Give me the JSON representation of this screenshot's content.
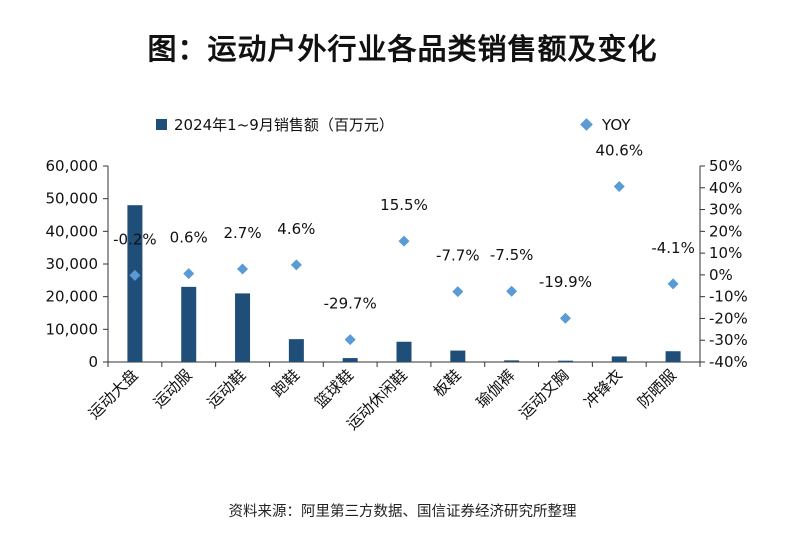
{
  "title": "图：运动户外行业各品类销售额及变化",
  "source": "资料来源：阿里第三方数据、国信证券经济研究所整理",
  "colors": {
    "bar": "#1f4e79",
    "yoy": "#5b9bd5",
    "axis": "#333333"
  },
  "chart_data": {
    "type": "bar",
    "categories": [
      "运动大盘",
      "运动服",
      "运动鞋",
      "跑鞋",
      "篮球鞋",
      "运动休闲鞋",
      "板鞋",
      "瑜伽裤",
      "运动文胸",
      "冲锋衣",
      "防晒服"
    ],
    "series": [
      {
        "name": "2024年1~9月销售额（百万元）",
        "kind": "bar",
        "axis": "left",
        "values": [
          48000,
          23000,
          21000,
          7000,
          1200,
          6200,
          3500,
          500,
          400,
          1700,
          3300
        ]
      },
      {
        "name": "YOY",
        "kind": "scatter",
        "axis": "right",
        "values": [
          -0.2,
          0.6,
          2.7,
          4.6,
          -29.7,
          15.5,
          -7.7,
          -7.5,
          -19.9,
          40.6,
          -4.1
        ],
        "labels": [
          "-0.2%",
          "0.6%",
          "2.7%",
          "4.6%",
          "-29.7%",
          "15.5%",
          "-7.7%",
          "-7.5%",
          "-19.9%",
          "40.6%",
          "-4.1%"
        ]
      }
    ],
    "y_left": {
      "min": 0,
      "max": 60000,
      "ticks": [
        "0",
        "10,000",
        "20,000",
        "30,000",
        "40,000",
        "50,000",
        "60,000"
      ]
    },
    "y_right": {
      "min": -40,
      "max": 50,
      "ticks": [
        "-40%",
        "-30%",
        "-20%",
        "-10%",
        "0%",
        "10%",
        "20%",
        "30%",
        "40%",
        "50%"
      ]
    },
    "grid": false,
    "legend": "top"
  }
}
